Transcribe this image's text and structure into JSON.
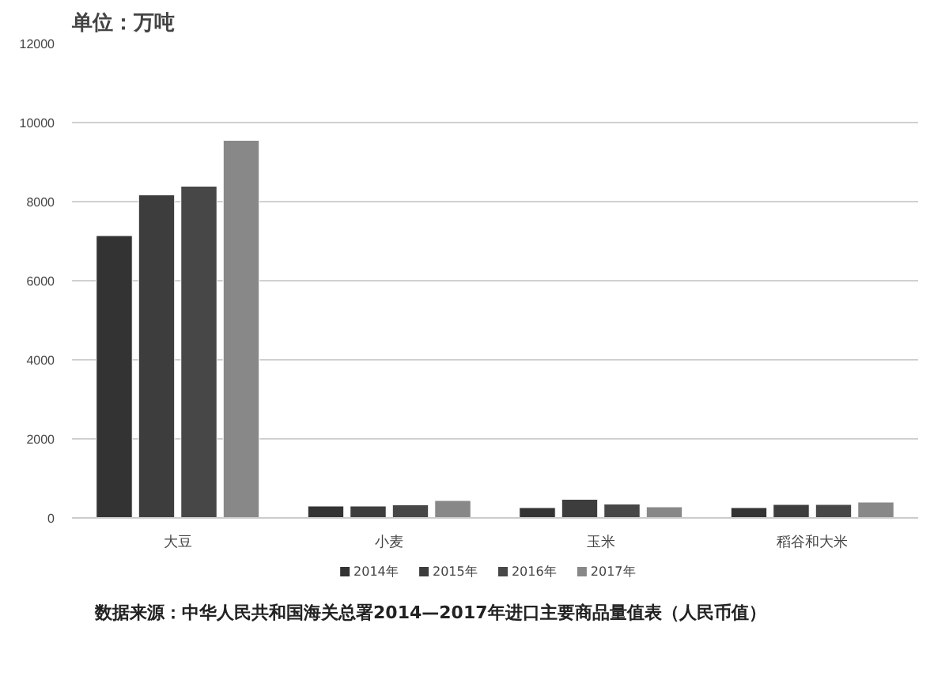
{
  "chart_data": {
    "type": "bar",
    "title": "单位：万吨",
    "categories": [
      "大豆",
      "小麦",
      "玉米",
      "稻谷和大米"
    ],
    "series": [
      {
        "name": "2014年",
        "color": "#333333",
        "values": [
          7140,
          300,
          260,
          260
        ]
      },
      {
        "name": "2015年",
        "color": "#3d3d3d",
        "values": [
          8170,
          300,
          470,
          340
        ]
      },
      {
        "name": "2016年",
        "color": "#474747",
        "values": [
          8390,
          330,
          350,
          340
        ]
      },
      {
        "name": "2017年",
        "color": "#888888",
        "values": [
          9550,
          440,
          280,
          400
        ]
      }
    ],
    "ylim": [
      0,
      12000
    ],
    "yticks": [
      0,
      2000,
      4000,
      6000,
      8000,
      10000,
      12000
    ],
    "grid": "y",
    "legend": "bottom",
    "annotations": [
      "数据来源：中华人民共和国海关总署2014—2017年进口主要商品量值表（人民币值）"
    ]
  }
}
